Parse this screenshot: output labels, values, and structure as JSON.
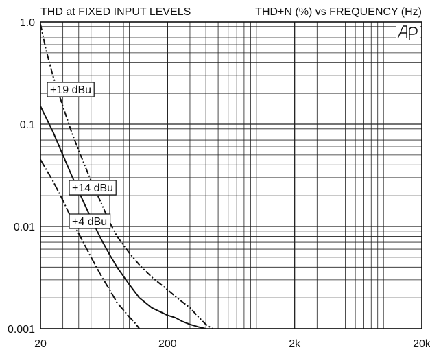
{
  "chart_data": {
    "type": "line",
    "title": "THD at FIXED INPUT LEVELS",
    "subtitle": "THD+N (%) vs FREQUENCY (Hz)",
    "logo": "AP",
    "xlabel": "",
    "ylabel": "",
    "x_scale": "log",
    "y_scale": "log",
    "xlim": [
      20,
      20000
    ],
    "ylim": [
      0.001,
      1.0
    ],
    "x_ticks": [
      20,
      200,
      2000,
      20000
    ],
    "x_tick_labels": [
      "20",
      "200",
      "2k",
      "20k"
    ],
    "y_ticks": [
      1.0,
      0.1,
      0.01,
      0.001
    ],
    "y_tick_labels": [
      "1.0",
      "0.1",
      "0.01",
      "0.001"
    ],
    "grid": true,
    "series": [
      {
        "name": "+19 dBu",
        "style": "dash-dot-dot",
        "points": [
          [
            20,
            0.95
          ],
          [
            22,
            0.55
          ],
          [
            25,
            0.3
          ],
          [
            30,
            0.15
          ],
          [
            35,
            0.085
          ],
          [
            40,
            0.055
          ],
          [
            50,
            0.028
          ],
          [
            60,
            0.017
          ],
          [
            70,
            0.011
          ],
          [
            80,
            0.008
          ],
          [
            100,
            0.0055
          ],
          [
            120,
            0.0042
          ],
          [
            150,
            0.0032
          ],
          [
            200,
            0.0024
          ],
          [
            250,
            0.0019
          ],
          [
            300,
            0.0016
          ],
          [
            350,
            0.0013
          ],
          [
            400,
            0.0011
          ],
          [
            450,
            0.001
          ]
        ]
      },
      {
        "name": "+14 dBu",
        "style": "solid",
        "points": [
          [
            20,
            0.15
          ],
          [
            25,
            0.085
          ],
          [
            30,
            0.05
          ],
          [
            35,
            0.032
          ],
          [
            40,
            0.022
          ],
          [
            50,
            0.012
          ],
          [
            60,
            0.0075
          ],
          [
            70,
            0.0053
          ],
          [
            80,
            0.004
          ],
          [
            100,
            0.0027
          ],
          [
            120,
            0.002
          ],
          [
            150,
            0.0016
          ],
          [
            200,
            0.00135
          ],
          [
            230,
            0.00128
          ],
          [
            260,
            0.00118
          ],
          [
            300,
            0.0011
          ],
          [
            350,
            0.00104
          ],
          [
            400,
            0.001
          ]
        ]
      },
      {
        "name": "+4 dBu",
        "style": "dash-dot",
        "points": [
          [
            20,
            0.045
          ],
          [
            25,
            0.028
          ],
          [
            30,
            0.018
          ],
          [
            35,
            0.012
          ],
          [
            40,
            0.0085
          ],
          [
            50,
            0.005
          ],
          [
            60,
            0.0033
          ],
          [
            70,
            0.0024
          ],
          [
            80,
            0.0018
          ],
          [
            100,
            0.0013
          ],
          [
            110,
            0.00115
          ],
          [
            120,
            0.001
          ]
        ]
      }
    ],
    "annotations": [
      {
        "text": "+19 dBu",
        "series": "+19 dBu"
      },
      {
        "text": "+14 dBu",
        "series": "+14 dBu"
      },
      {
        "text": "+4 dBu",
        "series": "+4 dBu"
      }
    ]
  }
}
